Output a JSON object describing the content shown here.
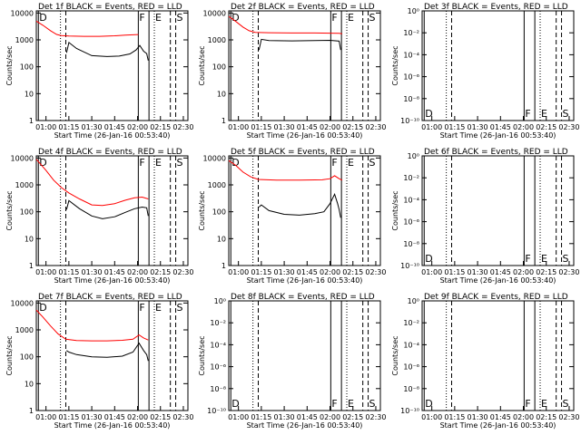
{
  "chart_data": [
    {
      "panel": "1f",
      "type": "line",
      "title": "Det 1f BLACK = Events, RED = LLD",
      "xlabel": "Start Time (26-Jan-16 00:53:40)",
      "ylabel": "Counts/sec",
      "scale": "log",
      "xticks": [
        "01:00",
        "01:15",
        "01:30",
        "01:45",
        "02:00",
        "02:15",
        "02:30"
      ],
      "yticks": [
        "1",
        "10",
        "100",
        "1000",
        "10000"
      ],
      "xlim": [
        "00:53:40",
        "02:33:00"
      ],
      "ylim": [
        1,
        12000
      ],
      "markers": [
        {
          "time": "00:55:00",
          "style": "solid",
          "label": "D"
        },
        {
          "time": "01:09:30",
          "style": "dotted",
          "label": ""
        },
        {
          "time": "01:13:00",
          "style": "dashed",
          "label": ""
        },
        {
          "time": "02:00:30",
          "style": "solid",
          "label": "F"
        },
        {
          "time": "02:07:30",
          "style": "solid",
          "label": ""
        },
        {
          "time": "02:11:00",
          "style": "dotted",
          "label": "E"
        },
        {
          "time": "02:21:30",
          "style": "dashed",
          "label": ""
        },
        {
          "time": "02:25:00",
          "style": "dashed",
          "label": "S"
        }
      ],
      "series": [
        {
          "name": "LLD",
          "color": "#ff0000",
          "x": [
            "00:53:40",
            "00:58:00",
            "01:03:00",
            "01:07:00",
            "01:10:00",
            "01:15:00",
            "01:25:00",
            "01:35:00",
            "01:45:00",
            "01:52:00",
            "01:57:00",
            "02:00:30"
          ],
          "values": [
            5000,
            3500,
            2200,
            1600,
            1450,
            1400,
            1350,
            1350,
            1420,
            1500,
            1550,
            1580
          ]
        },
        {
          "name": "Events",
          "color": "#000000",
          "x": [
            "01:13:30",
            "01:15:00",
            "01:20:00",
            "01:30:00",
            "01:40:00",
            "01:48:00",
            "01:55:00",
            "01:59:00",
            "02:01:30",
            "02:04:00",
            "02:06:00",
            "02:07:00"
          ],
          "values": [
            330,
            800,
            480,
            260,
            240,
            250,
            300,
            420,
            620,
            380,
            310,
            170
          ]
        }
      ]
    },
    {
      "panel": "2f",
      "type": "line",
      "title": "Det 2f BLACK = Events, RED = LLD",
      "xlabel": "Start Time (26-Jan-16 00:53:40)",
      "ylabel": "Counts/sec",
      "scale": "log",
      "xticks": [
        "01:00",
        "01:15",
        "01:30",
        "01:45",
        "02:00",
        "02:15",
        "02:30"
      ],
      "yticks": [
        "1",
        "10",
        "100",
        "1000",
        "10000"
      ],
      "xlim": [
        "00:53:40",
        "02:33:00"
      ],
      "ylim": [
        1,
        12000
      ],
      "markers": [
        {
          "time": "00:55:00",
          "style": "solid",
          "label": "D"
        },
        {
          "time": "01:09:30",
          "style": "dotted",
          "label": ""
        },
        {
          "time": "01:13:00",
          "style": "dashed",
          "label": ""
        },
        {
          "time": "02:00:30",
          "style": "solid",
          "label": "F"
        },
        {
          "time": "02:07:30",
          "style": "solid",
          "label": ""
        },
        {
          "time": "02:11:00",
          "style": "dotted",
          "label": "E"
        },
        {
          "time": "02:21:30",
          "style": "dashed",
          "label": ""
        },
        {
          "time": "02:25:00",
          "style": "dashed",
          "label": "S"
        }
      ],
      "series": [
        {
          "name": "LLD",
          "color": "#ff0000",
          "x": [
            "00:53:40",
            "00:58:00",
            "01:03:00",
            "01:07:00",
            "01:11:00",
            "01:20:00",
            "01:35:00",
            "01:50:00",
            "02:00:00",
            "02:06:00",
            "02:08:00"
          ],
          "values": [
            7500,
            5000,
            3000,
            2200,
            1900,
            1850,
            1800,
            1800,
            1780,
            1750,
            1700
          ]
        },
        {
          "name": "Events",
          "color": "#000000",
          "x": [
            "01:13:30",
            "01:15:00",
            "01:20:00",
            "01:35:00",
            "01:50:00",
            "02:00:00",
            "02:06:00",
            "02:07:00"
          ],
          "values": [
            420,
            1050,
            950,
            920,
            950,
            960,
            900,
            420
          ]
        }
      ]
    },
    {
      "panel": "3f",
      "type": "line",
      "title": "Det 3f BLACK = Events, RED = LLD",
      "xlabel": "Start Time (26-Jan-16 00:53:40)",
      "ylabel": "Counts/sec",
      "scale": "log",
      "xticks": [
        "01:00",
        "01:15",
        "01:30",
        "01:45",
        "02:00",
        "02:15",
        "02:30"
      ],
      "yticks": [
        "10⁻¹⁰",
        "10⁻⁸",
        "10⁻⁶",
        "10⁻⁴",
        "10⁻²",
        "10⁰"
      ],
      "xlim": [
        "00:53:40",
        "02:33:00"
      ],
      "ylim": [
        1,
        1e-10
      ],
      "markers": [
        {
          "time": "00:55:00",
          "style": "solid",
          "label": "D"
        },
        {
          "time": "01:09:30",
          "style": "dotted",
          "label": ""
        },
        {
          "time": "01:13:00",
          "style": "dashed",
          "label": ""
        },
        {
          "time": "02:00:30",
          "style": "solid",
          "label": "F"
        },
        {
          "time": "02:07:30",
          "style": "solid",
          "label": ""
        },
        {
          "time": "02:11:00",
          "style": "dotted",
          "label": "E"
        },
        {
          "time": "02:21:30",
          "style": "dashed",
          "label": ""
        },
        {
          "time": "02:25:00",
          "style": "dashed",
          "label": "S"
        }
      ],
      "series": []
    },
    {
      "panel": "4f",
      "type": "line",
      "title": "Det 4f BLACK = Events, RED = LLD",
      "xlabel": "Start Time (26-Jan-16 00:53:40)",
      "ylabel": "Counts/sec",
      "scale": "log",
      "xticks": [
        "01:00",
        "01:15",
        "01:30",
        "01:45",
        "02:00",
        "02:15",
        "02:30"
      ],
      "yticks": [
        "1",
        "10",
        "100",
        "1000",
        "10000"
      ],
      "xlim": [
        "00:53:40",
        "02:33:00"
      ],
      "ylim": [
        1,
        12000
      ],
      "markers": [
        {
          "time": "00:55:00",
          "style": "solid",
          "label": "D"
        },
        {
          "time": "01:09:30",
          "style": "dotted",
          "label": ""
        },
        {
          "time": "01:13:00",
          "style": "dashed",
          "label": ""
        },
        {
          "time": "02:00:30",
          "style": "solid",
          "label": "F"
        },
        {
          "time": "02:07:30",
          "style": "solid",
          "label": ""
        },
        {
          "time": "02:11:00",
          "style": "dotted",
          "label": "E"
        },
        {
          "time": "02:21:30",
          "style": "dashed",
          "label": ""
        },
        {
          "time": "02:25:00",
          "style": "dashed",
          "label": "S"
        }
      ],
      "series": [
        {
          "name": "LLD",
          "color": "#ff0000",
          "x": [
            "00:53:40",
            "01:00:00",
            "01:05:00",
            "01:10:00",
            "01:15:00",
            "01:22:00",
            "01:30:00",
            "01:37:00",
            "01:45:00",
            "01:52:00",
            "01:58:00",
            "02:03:00",
            "02:07:00"
          ],
          "values": [
            9000,
            3500,
            1500,
            800,
            500,
            300,
            180,
            170,
            200,
            270,
            330,
            350,
            300
          ]
        },
        {
          "name": "Events",
          "color": "#000000",
          "x": [
            "01:13:30",
            "01:15:00",
            "01:22:00",
            "01:30:00",
            "01:37:00",
            "01:45:00",
            "01:52:00",
            "01:58:00",
            "02:03:00",
            "02:06:00",
            "02:07:00"
          ],
          "values": [
            120,
            260,
            130,
            70,
            55,
            65,
            95,
            130,
            150,
            140,
            70
          ]
        }
      ]
    },
    {
      "panel": "5f",
      "type": "line",
      "title": "Det 5f BLACK = Events, RED = LLD",
      "xlabel": "Start Time (26-Jan-16 00:53:40)",
      "ylabel": "Counts/sec",
      "scale": "log",
      "xticks": [
        "01:00",
        "01:15",
        "01:30",
        "01:45",
        "02:00",
        "02:15",
        "02:30"
      ],
      "yticks": [
        "1",
        "10",
        "100",
        "1000",
        "10000"
      ],
      "xlim": [
        "00:53:40",
        "02:33:00"
      ],
      "ylim": [
        1,
        12000
      ],
      "markers": [
        {
          "time": "00:55:00",
          "style": "solid",
          "label": "D"
        },
        {
          "time": "01:09:30",
          "style": "dotted",
          "label": ""
        },
        {
          "time": "01:13:00",
          "style": "dashed",
          "label": ""
        },
        {
          "time": "02:00:30",
          "style": "solid",
          "label": "F"
        },
        {
          "time": "02:07:30",
          "style": "solid",
          "label": ""
        },
        {
          "time": "02:11:00",
          "style": "dotted",
          "label": "E"
        },
        {
          "time": "02:21:30",
          "style": "dashed",
          "label": ""
        },
        {
          "time": "02:25:00",
          "style": "dashed",
          "label": "S"
        }
      ],
      "series": [
        {
          "name": "LLD",
          "color": "#ff0000",
          "x": [
            "00:53:40",
            "00:58:00",
            "01:03:00",
            "01:08:00",
            "01:13:00",
            "01:25:00",
            "01:40:00",
            "01:55:00",
            "02:00:00",
            "02:03:00",
            "02:06:00",
            "02:08:00"
          ],
          "values": [
            8000,
            5500,
            3000,
            2000,
            1600,
            1500,
            1500,
            1550,
            1700,
            2200,
            1700,
            1500
          ]
        },
        {
          "name": "Events",
          "color": "#000000",
          "x": [
            "01:13:30",
            "01:15:00",
            "01:20:00",
            "01:30:00",
            "01:40:00",
            "01:50:00",
            "01:56:00",
            "02:00:00",
            "02:03:00",
            "02:05:00",
            "02:06:00",
            "02:07:00"
          ],
          "values": [
            150,
            180,
            110,
            80,
            75,
            85,
            100,
            200,
            450,
            200,
            120,
            60
          ]
        }
      ]
    },
    {
      "panel": "6f",
      "type": "line",
      "title": "Det 6f BLACK = Events, RED = LLD",
      "xlabel": "Start Time (26-Jan-16 00:53:40)",
      "ylabel": "Counts/sec",
      "scale": "log",
      "xticks": [
        "01:00",
        "01:15",
        "01:30",
        "01:45",
        "02:00",
        "02:15",
        "02:30"
      ],
      "yticks": [
        "10⁻¹⁰",
        "10⁻⁸",
        "10⁻⁶",
        "10⁻⁴",
        "10⁻²",
        "10⁰"
      ],
      "xlim": [
        "00:53:40",
        "02:33:00"
      ],
      "ylim": [
        1,
        1e-10
      ],
      "markers": [
        {
          "time": "00:55:00",
          "style": "solid",
          "label": "D"
        },
        {
          "time": "01:09:30",
          "style": "dotted",
          "label": ""
        },
        {
          "time": "01:13:00",
          "style": "dashed",
          "label": ""
        },
        {
          "time": "02:00:30",
          "style": "solid",
          "label": "F"
        },
        {
          "time": "02:07:30",
          "style": "solid",
          "label": ""
        },
        {
          "time": "02:11:00",
          "style": "dotted",
          "label": "E"
        },
        {
          "time": "02:21:30",
          "style": "dashed",
          "label": ""
        },
        {
          "time": "02:25:00",
          "style": "dashed",
          "label": "S"
        }
      ],
      "series": []
    },
    {
      "panel": "7f",
      "type": "line",
      "title": "Det 7f BLACK = Events, RED = LLD",
      "xlabel": "Start Time (26-Jan-16 00:53:40)",
      "ylabel": "Counts/sec",
      "scale": "log",
      "xticks": [
        "01:00",
        "01:15",
        "01:30",
        "01:45",
        "02:00",
        "02:15",
        "02:30"
      ],
      "yticks": [
        "1",
        "10",
        "100",
        "1000",
        "10000"
      ],
      "xlim": [
        "00:53:40",
        "02:33:00"
      ],
      "ylim": [
        1,
        12000
      ],
      "markers": [
        {
          "time": "00:55:00",
          "style": "solid",
          "label": "D"
        },
        {
          "time": "01:09:30",
          "style": "dotted",
          "label": ""
        },
        {
          "time": "01:13:00",
          "style": "dashed",
          "label": ""
        },
        {
          "time": "02:00:30",
          "style": "solid",
          "label": "F"
        },
        {
          "time": "02:07:30",
          "style": "solid",
          "label": ""
        },
        {
          "time": "02:11:00",
          "style": "dotted",
          "label": "E"
        },
        {
          "time": "02:21:30",
          "style": "dashed",
          "label": ""
        },
        {
          "time": "02:25:00",
          "style": "dashed",
          "label": "S"
        }
      ],
      "series": [
        {
          "name": "LLD",
          "color": "#ff0000",
          "x": [
            "00:53:40",
            "00:58:00",
            "01:03:00",
            "01:08:00",
            "01:13:00",
            "01:20:00",
            "01:30:00",
            "01:40:00",
            "01:50:00",
            "01:57:00",
            "02:01:00",
            "02:04:00",
            "02:07:00"
          ],
          "values": [
            5500,
            3000,
            1400,
            700,
            450,
            400,
            390,
            390,
            410,
            450,
            650,
            500,
            420
          ]
        },
        {
          "name": "Events",
          "color": "#000000",
          "x": [
            "01:13:30",
            "01:15:00",
            "01:20:00",
            "01:30:00",
            "01:40:00",
            "01:50:00",
            "01:57:00",
            "02:01:00",
            "02:04:00",
            "02:06:00",
            "02:07:00"
          ],
          "values": [
            170,
            150,
            120,
            100,
            95,
            105,
            150,
            320,
            170,
            120,
            70
          ]
        }
      ]
    },
    {
      "panel": "8f",
      "type": "line",
      "title": "Det 8f BLACK = Events, RED = LLD",
      "xlabel": "Start Time (26-Jan-16 00:53:40)",
      "ylabel": "Counts/sec",
      "scale": "log",
      "xticks": [
        "01:00",
        "01:15",
        "01:30",
        "01:45",
        "02:00",
        "02:15",
        "02:30"
      ],
      "yticks": [
        "10⁻¹⁰",
        "10⁻⁸",
        "10⁻⁶",
        "10⁻⁴",
        "10⁻²",
        "10⁰"
      ],
      "xlim": [
        "00:53:40",
        "02:33:00"
      ],
      "ylim": [
        1,
        1e-10
      ],
      "markers": [
        {
          "time": "00:55:00",
          "style": "solid",
          "label": "D"
        },
        {
          "time": "01:09:30",
          "style": "dotted",
          "label": ""
        },
        {
          "time": "01:13:00",
          "style": "dashed",
          "label": ""
        },
        {
          "time": "02:00:30",
          "style": "solid",
          "label": "F"
        },
        {
          "time": "02:07:30",
          "style": "solid",
          "label": ""
        },
        {
          "time": "02:11:00",
          "style": "dotted",
          "label": "E"
        },
        {
          "time": "02:21:30",
          "style": "dashed",
          "label": ""
        },
        {
          "time": "02:25:00",
          "style": "dashed",
          "label": "S"
        }
      ],
      "series": []
    },
    {
      "panel": "9f",
      "type": "line",
      "title": "Det 9f BLACK = Events, RED = LLD",
      "xlabel": "Start Time (26-Jan-16 00:53:40)",
      "ylabel": "Counts/sec",
      "scale": "log",
      "xticks": [
        "01:00",
        "01:15",
        "01:30",
        "01:45",
        "02:00",
        "02:15",
        "02:30"
      ],
      "yticks": [
        "10⁻¹⁰",
        "10⁻⁸",
        "10⁻⁶",
        "10⁻⁴",
        "10⁻²",
        "10⁰"
      ],
      "xlim": [
        "00:53:40",
        "02:33:00"
      ],
      "ylim": [
        1,
        1e-10
      ],
      "markers": [
        {
          "time": "00:55:00",
          "style": "solid",
          "label": "D"
        },
        {
          "time": "01:09:30",
          "style": "dotted",
          "label": ""
        },
        {
          "time": "01:13:00",
          "style": "dashed",
          "label": ""
        },
        {
          "time": "02:00:30",
          "style": "solid",
          "label": "F"
        },
        {
          "time": "02:07:30",
          "style": "solid",
          "label": ""
        },
        {
          "time": "02:11:00",
          "style": "dotted",
          "label": "E"
        },
        {
          "time": "02:21:30",
          "style": "dashed",
          "label": ""
        },
        {
          "time": "02:25:00",
          "style": "dashed",
          "label": "S"
        }
      ],
      "series": []
    }
  ]
}
